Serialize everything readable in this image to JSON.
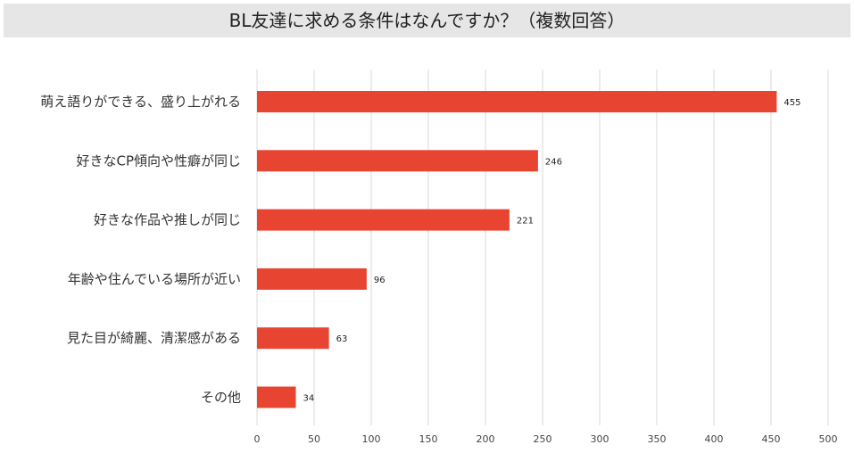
{
  "chart_data": {
    "type": "bar",
    "orientation": "horizontal",
    "title": "BL友達に求める条件はなんですか？（複数回答）",
    "categories": [
      "萌え語りができる、盛り上がれる",
      "好きなCP傾向や性癖が同じ",
      "好きな作品や推しが同じ",
      "年齢や住んでいる場所が近い",
      "見た目が綺麗、清潔感がある",
      "その他"
    ],
    "values": [
      455,
      246,
      221,
      96,
      63,
      34
    ],
    "xlim": [
      0,
      500
    ],
    "xticks": [
      0,
      50,
      100,
      150,
      200,
      250,
      300,
      350,
      400,
      450,
      500
    ],
    "grid": "vertical",
    "data_labels": true,
    "bar_color": "#e84432",
    "grid_color": "#d9d9d9"
  }
}
